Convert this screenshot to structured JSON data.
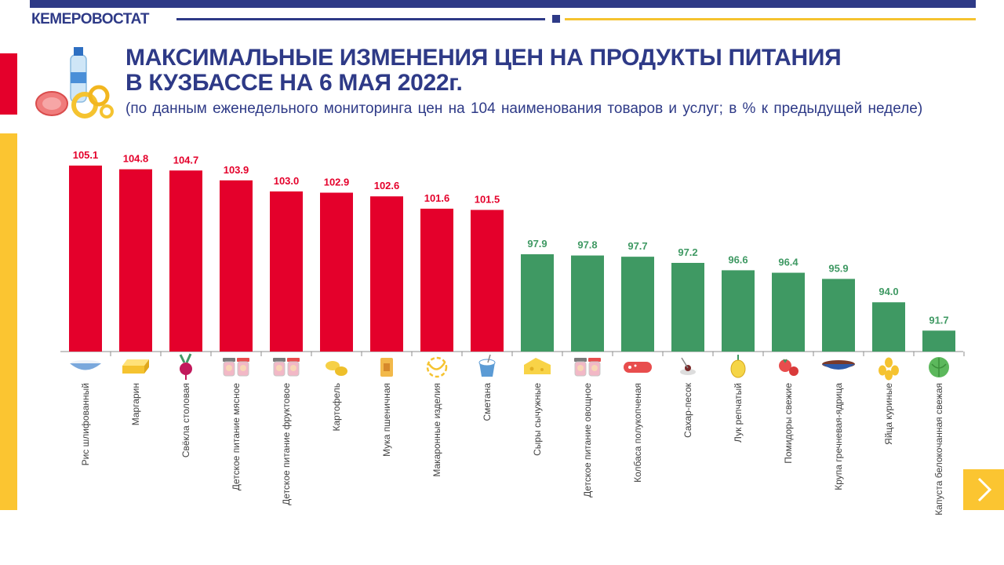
{
  "header": {
    "brand": "КЕМЕРОВОСТАТ",
    "title_line1": "МАКСИМАЛЬНЫЕ ИЗМЕНЕНИЯ ЦЕН НА ПРОДУКТЫ ПИТАНИЯ",
    "title_line2": "В КУЗБАССЕ НА 6 МАЯ 2022г.",
    "subtitle": "(по данным  еженедельного  мониторинга  цен на 104 наименования  товаров и услуг; в % к предыдущей  неделе)"
  },
  "colors": {
    "primary": "#2e3a87",
    "increase": "#e4002b",
    "decrease": "#3f9963",
    "accent": "#fbc531"
  },
  "icons": [
    "rice-bowl-icon",
    "butter-icon",
    "beet-icon",
    "baby-food-jar-icon",
    "baby-food-jar-icon",
    "potato-icon",
    "flour-bag-icon",
    "pasta-icon",
    "sour-cream-icon",
    "cheese-icon",
    "baby-food-jar-icon",
    "sausage-icon",
    "sugar-icon",
    "onion-icon",
    "tomato-icon",
    "buckwheat-bowl-icon",
    "eggs-icon",
    "cabbage-icon"
  ],
  "chart_data": {
    "type": "bar",
    "categories": [
      "Рис шлифованный",
      "Маргарин",
      "Свёкла  столовая",
      "Детское  питание  мясное",
      "Детское  питание  фруктовое",
      "Картофель",
      "Мука пшеничная",
      "Макаронные  изделия",
      "Сметана",
      "Сыры  сычужные",
      "Детское  питание  овощное",
      "Колбаса  полукопченая",
      "Сахар-песок",
      "Лук репчатый",
      "Помидоры  свежие",
      "Крупа гречневая-ядрица",
      "Яйца  куриные",
      "Капуста  белокочанная  свежая"
    ],
    "values": [
      105.1,
      104.8,
      104.7,
      103.9,
      103.0,
      102.9,
      102.6,
      101.6,
      101.5,
      97.9,
      97.8,
      97.7,
      97.2,
      96.6,
      96.4,
      95.9,
      94.0,
      91.7
    ],
    "value_labels": [
      "105.1",
      "104.8",
      "104.7",
      "103.9",
      "103.0",
      "102.9",
      "102.6",
      "101.6",
      "101.5",
      "97.9",
      "97.8",
      "97.7",
      "97.2",
      "96.6",
      "96.4",
      "95.9",
      "94.0",
      "91.7"
    ],
    "baseline": 90,
    "ylim": [
      90,
      105.1
    ],
    "grid": false,
    "legend": "none"
  }
}
